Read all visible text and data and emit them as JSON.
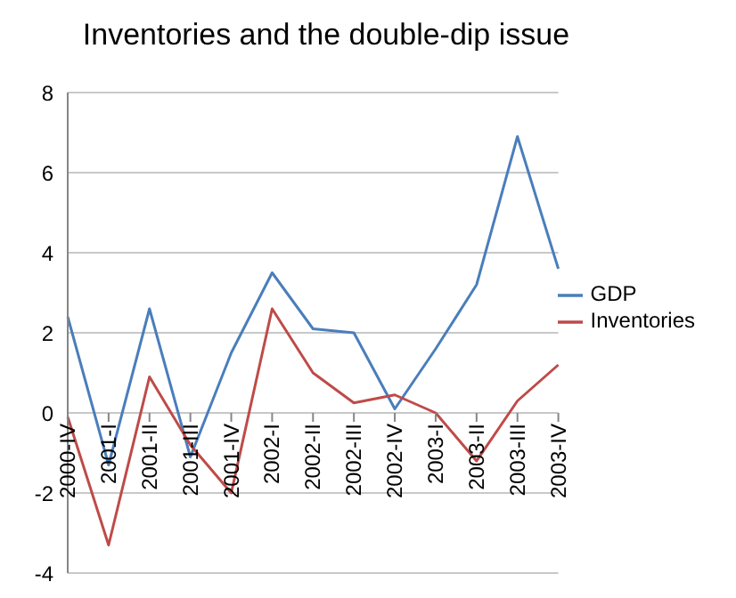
{
  "chart_data": {
    "type": "line",
    "title": "Inventories and the double-dip issue",
    "categories": [
      "2000-IV",
      "2001-I",
      "2001-II",
      "2001-III",
      "2001-IV",
      "2002-I",
      "2002-II",
      "2002-III",
      "2002-IV",
      "2003-I",
      "2003-II",
      "2003-III",
      "2003-IV"
    ],
    "series": [
      {
        "name": "GDP",
        "color": "#4a7ebb",
        "values": [
          2.4,
          -1.3,
          2.6,
          -1.1,
          1.5,
          3.5,
          2.1,
          2.0,
          0.1,
          1.6,
          3.2,
          6.9,
          3.6
        ]
      },
      {
        "name": "Inventories",
        "color": "#be4b48",
        "values": [
          -0.1,
          -3.3,
          0.9,
          -0.8,
          -2.0,
          2.6,
          1.0,
          0.25,
          0.45,
          0.0,
          -1.2,
          0.3,
          1.2
        ]
      }
    ],
    "ylim": [
      -4,
      8
    ],
    "yticks": [
      -4,
      -2,
      0,
      2,
      4,
      6,
      8
    ],
    "grid": "y",
    "legend": "right",
    "marker": "none",
    "line_style": "solid"
  }
}
